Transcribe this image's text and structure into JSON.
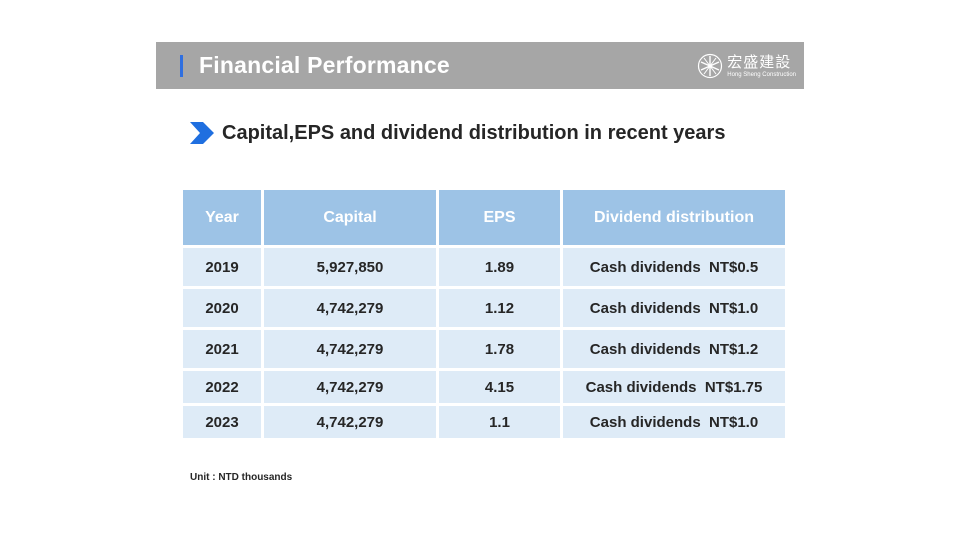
{
  "header": {
    "title": "Financial Performance",
    "logo": {
      "name_cn": "宏盛建設",
      "name_en": "Hong Sheng Construction",
      "icon": "company-logo-icon"
    },
    "bar_color": "#a6a6a6",
    "accent_color": "#2f6fe0"
  },
  "section": {
    "subtitle": "Capital,EPS and dividend distribution in recent years",
    "bullet_icon": "chevron-right-icon",
    "bullet_color": "#1f6fe0"
  },
  "table": {
    "header_color": "#9dc3e6",
    "cell_color": "#deebf7",
    "columns": [
      "Year",
      "Capital",
      "EPS",
      "Dividend distribution"
    ],
    "rows": [
      {
        "year": "2019",
        "capital": "5,927,850",
        "eps": "1.89",
        "dividend": "Cash dividends  NT$0.5"
      },
      {
        "year": "2020",
        "capital": "4,742,279",
        "eps": "1.12",
        "dividend": "Cash dividends  NT$1.0"
      },
      {
        "year": "2021",
        "capital": "4,742,279",
        "eps": "1.78",
        "dividend": "Cash dividends  NT$1.2"
      },
      {
        "year": "2022",
        "capital": "4,742,279",
        "eps": "4.15",
        "dividend": "Cash dividends  NT$1.75"
      },
      {
        "year": "2023",
        "capital": "4,742,279",
        "eps": "1.1",
        "dividend": "Cash dividends  NT$1.0"
      }
    ]
  },
  "footer": {
    "unit": "Unit : NTD thousands"
  }
}
